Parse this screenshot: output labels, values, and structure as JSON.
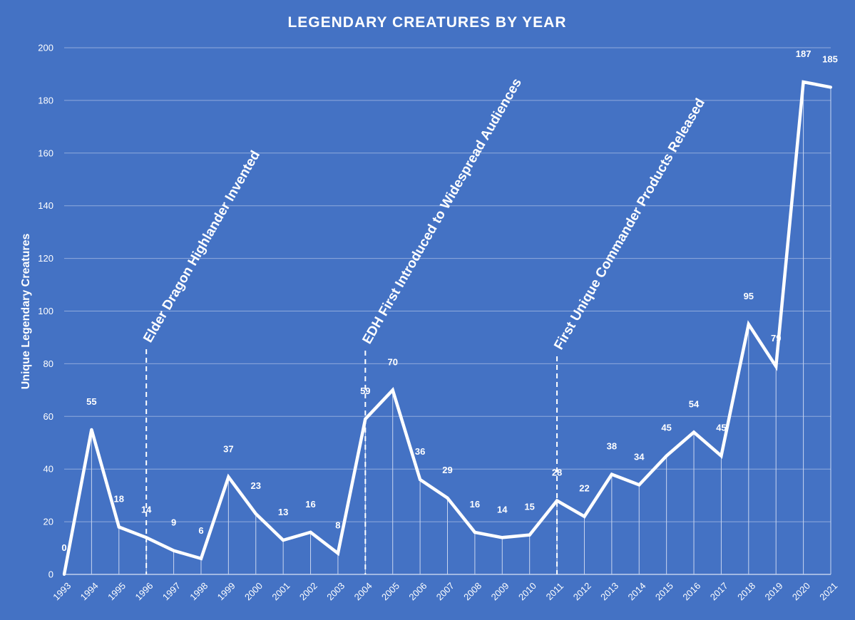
{
  "chart_data": {
    "type": "line",
    "title": "LEGENDARY CREATURES BY YEAR",
    "xlabel": "",
    "ylabel": "Unique Legendary Creatures",
    "ylim": [
      0,
      200
    ],
    "yticks": [
      0,
      20,
      40,
      60,
      80,
      100,
      120,
      140,
      160,
      180,
      200
    ],
    "grid": true,
    "categories": [
      "1993",
      "1994",
      "1995",
      "1996",
      "1997",
      "1998",
      "1999",
      "2000",
      "2001",
      "2002",
      "2003",
      "2004",
      "2005",
      "2006",
      "2007",
      "2008",
      "2009",
      "2010",
      "2011",
      "2012",
      "2013",
      "2014",
      "2015",
      "2016",
      "2017",
      "2018",
      "2019",
      "2020",
      "2021"
    ],
    "series": [
      {
        "name": "Unique Legendary Creatures",
        "values": [
          0,
          55,
          18,
          14,
          9,
          6,
          37,
          23,
          13,
          16,
          8,
          59,
          70,
          36,
          29,
          16,
          14,
          15,
          28,
          22,
          38,
          34,
          45,
          54,
          45,
          95,
          79,
          187,
          185
        ]
      }
    ],
    "annotations": [
      {
        "x": "1996",
        "text": "Elder Dragon Highlander Invented"
      },
      {
        "x": "2004",
        "text": "EDH First Introduced to Widespread Audiences"
      },
      {
        "x": "2011",
        "text": "First Unique Commander Products Released"
      }
    ]
  }
}
